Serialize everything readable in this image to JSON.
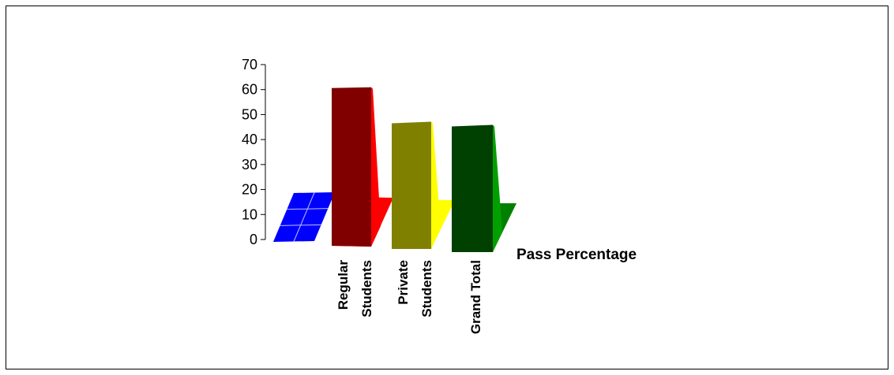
{
  "chart_data": {
    "type": "bar",
    "style": "3d-column",
    "categories": [
      [
        "",
        ""
      ],
      [
        "Regular",
        "Students"
      ],
      [
        "Private",
        "Students"
      ],
      [
        "Grand Total",
        ""
      ]
    ],
    "series": [
      {
        "name": "Pass Percentage",
        "values": [
          0,
          59,
          47,
          47
        ]
      }
    ],
    "bar_colors": [
      {
        "front": "#0000ff",
        "side": "#0000cc",
        "floor": "#0000ff"
      },
      {
        "front": "#800000",
        "side": "#ff0000",
        "floor": "#ff0000"
      },
      {
        "front": "#808000",
        "side": "#ffff00",
        "floor": "#ffff00"
      },
      {
        "front": "#004000",
        "side": "#00a000",
        "floor": "#008000"
      }
    ],
    "yticks": [
      "0",
      "10",
      "20",
      "30",
      "40",
      "50",
      "60",
      "70"
    ],
    "ylim": [
      0,
      70
    ],
    "legend": "none",
    "grid": false
  }
}
